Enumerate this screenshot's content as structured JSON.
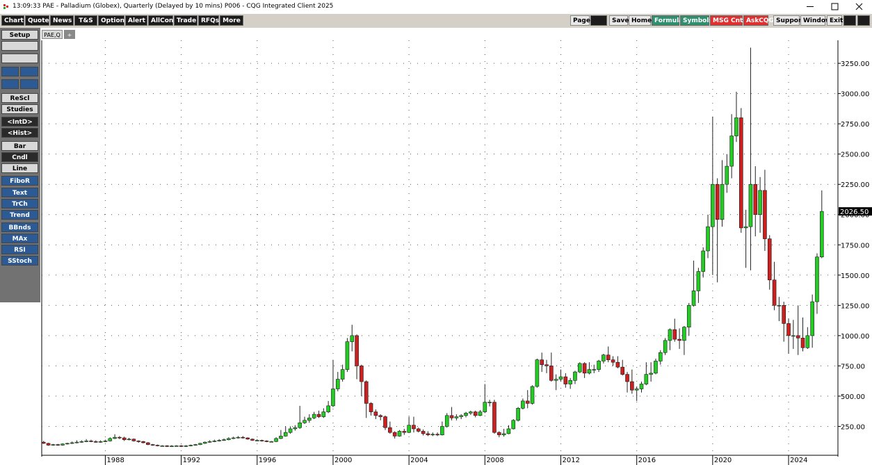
{
  "window_title": "13:09:33  PAE - Palladium (Globex), Quarterly (Delayed by 10 mins)  P006 - CQG Integrated Client 2025",
  "toolbar_left": [
    "Chart",
    "Quote",
    "News",
    "T&S",
    "Options",
    "Alert",
    "AllCon",
    "Trade",
    "RFQs",
    "More"
  ],
  "toolbar_right": [
    "Page",
    "Save",
    "Home",
    "Formula",
    "Symbols",
    "MSG Cntr",
    "AskCQG",
    "Support",
    "Window",
    "Exit"
  ],
  "sidebar": [
    "Setup",
    "ReScl",
    "Studies",
    "<IntD>",
    "<Hist>",
    "Bar",
    "Cndl",
    "Line",
    "FiboR",
    "Text",
    "TrCh",
    "Trend",
    "BBnds",
    "MAx",
    "RSI",
    "SStoch"
  ],
  "tabs": [
    "PAE,Q",
    "+"
  ],
  "chart_data": {
    "type": "candlestick",
    "x": [
      1984.75,
      1985,
      1985.25,
      1985.5,
      1985.75,
      1986,
      1986.25,
      1986.5,
      1986.75,
      1987,
      1987.25,
      1987.5,
      1987.75,
      1988,
      1988.25,
      1988.5,
      1988.75,
      1989,
      1989.25,
      1989.5,
      1989.75,
      1990,
      1990.25,
      1990.5,
      1990.75,
      1991,
      1991.25,
      1991.5,
      1991.75,
      1992,
      1992.25,
      1992.5,
      1992.75,
      1993,
      1993.25,
      1993.5,
      1993.75,
      1994,
      1994.25,
      1994.5,
      1994.75,
      1995,
      1995.25,
      1995.5,
      1995.75,
      1996,
      1996.25,
      1996.5,
      1996.75,
      1997,
      1997.25,
      1997.5,
      1997.75,
      1998,
      1998.25,
      1998.5,
      1998.75,
      1999,
      1999.25,
      1999.5,
      1999.75,
      2000,
      2000.25,
      2000.5,
      2000.75,
      2001,
      2001.25,
      2001.5,
      2001.75,
      2002,
      2002.25,
      2002.5,
      2002.75,
      2003,
      2003.25,
      2003.5,
      2003.75,
      2004,
      2004.25,
      2004.5,
      2004.75,
      2005,
      2005.25,
      2005.5,
      2005.75,
      2006,
      2006.25,
      2006.5,
      2006.75,
      2007,
      2007.25,
      2007.5,
      2007.75,
      2008,
      2008.25,
      2008.5,
      2008.75,
      2009,
      2009.25,
      2009.5,
      2009.75,
      2010,
      2010.25,
      2010.5,
      2010.75,
      2011,
      2011.25,
      2011.5,
      2011.75,
      2012,
      2012.25,
      2012.5,
      2012.75,
      2013,
      2013.25,
      2013.5,
      2013.75,
      2014,
      2014.25,
      2014.5,
      2014.75,
      2015,
      2015.25,
      2015.5,
      2015.75,
      2016,
      2016.25,
      2016.5,
      2016.75,
      2017,
      2017.25,
      2017.5,
      2017.75,
      2018,
      2018.25,
      2018.5,
      2018.75,
      2019,
      2019.25,
      2019.5,
      2019.75,
      2020,
      2020.25,
      2020.5,
      2020.75,
      2021,
      2021.25,
      2021.5,
      2021.75,
      2022,
      2022.25,
      2022.5,
      2022.75,
      2023,
      2023.25,
      2023.5,
      2023.75,
      2024,
      2024.25,
      2024.5,
      2024.75,
      2025,
      2025.25,
      2025.5,
      2025.75
    ],
    "open": [
      120,
      110,
      95,
      100,
      95,
      105,
      110,
      115,
      120,
      125,
      130,
      125,
      120,
      125,
      130,
      150,
      160,
      155,
      140,
      145,
      130,
      125,
      115,
      100,
      95,
      90,
      90,
      85,
      88,
      90,
      85,
      90,
      95,
      100,
      110,
      120,
      125,
      130,
      135,
      140,
      150,
      155,
      160,
      155,
      145,
      135,
      135,
      130,
      125,
      125,
      150,
      170,
      200,
      230,
      240,
      280,
      300,
      320,
      350,
      330,
      370,
      420,
      560,
      640,
      720,
      950,
      1000,
      750,
      620,
      440,
      370,
      340,
      330,
      240,
      200,
      170,
      210,
      200,
      260,
      230,
      210,
      190,
      180,
      185,
      180,
      250,
      340,
      320,
      330,
      340,
      360,
      370,
      340,
      370,
      450,
      450,
      200,
      180,
      190,
      230,
      300,
      400,
      460,
      440,
      580,
      800,
      760,
      750,
      630,
      640,
      660,
      600,
      630,
      700,
      770,
      690,
      720,
      720,
      790,
      840,
      800,
      780,
      740,
      680,
      620,
      550,
      560,
      600,
      680,
      690,
      790,
      860,
      960,
      1050,
      970,
      960,
      1070,
      1250,
      1370,
      1530,
      1700,
      1900,
      2250,
      1960,
      2250,
      2400,
      2650,
      2800,
      1890,
      1900,
      2250,
      2000,
      2200,
      1800,
      1460,
      1250,
      1250,
      1100,
      1000,
      1000,
      980,
      900,
      1000,
      1280,
      1650
    ],
    "high": [
      130,
      115,
      105,
      105,
      110,
      115,
      125,
      135,
      135,
      145,
      140,
      135,
      135,
      140,
      160,
      185,
      170,
      165,
      155,
      150,
      135,
      130,
      120,
      105,
      100,
      95,
      95,
      95,
      95,
      95,
      95,
      100,
      105,
      115,
      125,
      135,
      140,
      145,
      150,
      160,
      165,
      170,
      170,
      160,
      150,
      145,
      140,
      135,
      130,
      160,
      220,
      250,
      250,
      260,
      420,
      330,
      350,
      370,
      380,
      400,
      460,
      800,
      700,
      760,
      980,
      1090,
      1010,
      760,
      630,
      450,
      390,
      350,
      340,
      290,
      210,
      220,
      230,
      330,
      330,
      240,
      225,
      210,
      200,
      200,
      290,
      360,
      410,
      350,
      350,
      370,
      380,
      380,
      385,
      600,
      470,
      470,
      210,
      230,
      260,
      310,
      410,
      480,
      550,
      590,
      810,
      860,
      800,
      860,
      680,
      720,
      690,
      650,
      710,
      780,
      780,
      780,
      760,
      800,
      850,
      910,
      830,
      830,
      800,
      700,
      720,
      580,
      620,
      780,
      780,
      810,
      880,
      980,
      1060,
      1140,
      1060,
      1080,
      1270,
      1620,
      1560,
      1730,
      2000,
      2810,
      2300,
      2450,
      2500,
      2830,
      3015,
      2880,
      2040,
      3380,
      2400,
      2310,
      2370,
      1830,
      1610,
      1320,
      1280,
      1140,
      1130,
      1250,
      1150,
      1070,
      1340,
      1680,
      2200
    ],
    "low": [
      105,
      90,
      90,
      90,
      90,
      100,
      105,
      110,
      115,
      120,
      120,
      115,
      115,
      120,
      125,
      145,
      145,
      130,
      135,
      125,
      115,
      110,
      95,
      90,
      85,
      85,
      80,
      80,
      83,
      80,
      80,
      85,
      90,
      95,
      105,
      115,
      120,
      125,
      130,
      135,
      145,
      150,
      150,
      140,
      130,
      130,
      125,
      120,
      118,
      120,
      145,
      165,
      190,
      215,
      230,
      270,
      280,
      310,
      320,
      320,
      360,
      410,
      540,
      620,
      700,
      870,
      640,
      500,
      320,
      340,
      310,
      300,
      220,
      190,
      150,
      165,
      180,
      195,
      200,
      200,
      175,
      170,
      170,
      170,
      175,
      240,
      300,
      300,
      310,
      325,
      345,
      325,
      335,
      360,
      415,
      190,
      160,
      165,
      185,
      225,
      290,
      390,
      400,
      430,
      570,
      700,
      690,
      620,
      550,
      620,
      570,
      560,
      600,
      690,
      650,
      680,
      690,
      700,
      770,
      780,
      750,
      730,
      670,
      530,
      520,
      460,
      530,
      590,
      620,
      680,
      760,
      840,
      880,
      950,
      890,
      840,
      1000,
      1240,
      1270,
      1480,
      1640,
      1500,
      1440,
      1900,
      2180,
      2300,
      2600,
      1850,
      1560,
      1540,
      1820,
      1850,
      1700,
      1380,
      1210,
      1120,
      950,
      850,
      890,
      840,
      870,
      890,
      900,
      1180,
      1640
    ],
    "close": [
      110,
      95,
      100,
      95,
      105,
      110,
      115,
      120,
      125,
      130,
      125,
      120,
      125,
      130,
      150,
      160,
      155,
      140,
      145,
      130,
      125,
      115,
      100,
      95,
      90,
      90,
      85,
      88,
      90,
      85,
      90,
      95,
      100,
      110,
      120,
      125,
      130,
      135,
      140,
      150,
      155,
      160,
      155,
      145,
      135,
      135,
      130,
      125,
      125,
      150,
      170,
      200,
      230,
      240,
      280,
      300,
      320,
      350,
      330,
      370,
      420,
      560,
      640,
      720,
      950,
      1000,
      750,
      620,
      440,
      370,
      340,
      330,
      240,
      200,
      170,
      210,
      200,
      260,
      230,
      210,
      190,
      180,
      185,
      180,
      250,
      340,
      320,
      330,
      340,
      360,
      370,
      340,
      370,
      450,
      450,
      200,
      180,
      190,
      230,
      300,
      400,
      460,
      440,
      580,
      800,
      760,
      750,
      630,
      640,
      660,
      600,
      630,
      700,
      770,
      690,
      720,
      720,
      790,
      840,
      800,
      780,
      740,
      680,
      620,
      550,
      560,
      600,
      680,
      690,
      790,
      860,
      960,
      1050,
      970,
      960,
      1070,
      1250,
      1370,
      1530,
      1700,
      1900,
      2250,
      1960,
      2250,
      2400,
      2650,
      2800,
      1890,
      1900,
      2250,
      2000,
      2200,
      1800,
      1460,
      1250,
      1250,
      1100,
      1000,
      1000,
      980,
      900,
      1000,
      1280,
      1650,
      2026.5
    ],
    "up_color": "#22cc22",
    "down_color": "#cc1f1f",
    "xlim": [
      1984.65,
      2026.6
    ],
    "ylim": [
      0,
      3440
    ],
    "xticks": [
      1988,
      1992,
      1996,
      2000,
      2004,
      2008,
      2012,
      2016,
      2020,
      2024
    ],
    "yticks": [
      {
        "value": 250,
        "label": "250.00"
      },
      {
        "value": 500,
        "label": "500.00"
      },
      {
        "value": 750,
        "label": "750.00"
      },
      {
        "value": 1000,
        "label": "1000.00"
      },
      {
        "value": 1250,
        "label": "1250.00"
      },
      {
        "value": 1500,
        "label": "1500.00"
      },
      {
        "value": 1750,
        "label": "1750.00"
      },
      {
        "value": 2000,
        "label": "2000.00"
      },
      {
        "value": 2250,
        "label": "2250.00"
      },
      {
        "value": 2500,
        "label": "2500.00"
      },
      {
        "value": 2750,
        "label": "2750.00"
      },
      {
        "value": 3000,
        "label": "3000.00"
      },
      {
        "value": 3250,
        "label": "3250.00"
      }
    ],
    "grid": true,
    "last_price": {
      "value": 2026.5,
      "label": "2026.50"
    }
  }
}
